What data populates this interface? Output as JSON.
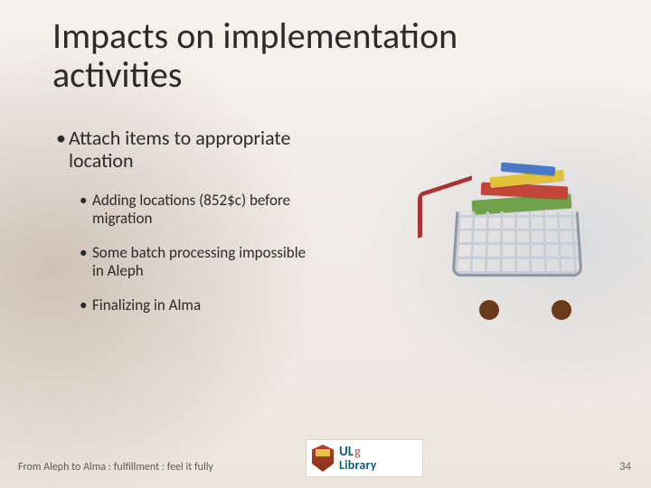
{
  "title": "Impacts on implementation activities",
  "main_bullet": "Attach items to appropriate location",
  "sub_bullets": [
    "Adding locations (852$c) before migration",
    "Some batch processing impossible in Aleph",
    "Finalizing in Alma"
  ],
  "footer_text": "From Aleph to Alma : fulfillment : feel it fully",
  "page_number": "34",
  "logo": {
    "line1_a": "UL",
    "line1_b": "g",
    "line2": "Library"
  },
  "colors": {
    "title": "#2b2b2b",
    "body": "#2b2b2b",
    "footer": "#5a5a5a",
    "page_num": "#6a6a6a",
    "logo_primary": "#14607a",
    "logo_accent": "#c04a2a",
    "background": "#f4f0ec"
  },
  "fonts": {
    "title_size_pt": 30,
    "l1_size_pt": 17,
    "l2_size_pt": 13,
    "footer_size_pt": 9
  },
  "illustration": {
    "type": "infographic",
    "description": "shopping-cart-with-stacked-books",
    "book_colors": [
      "#6fa24a",
      "#c4453a",
      "#e2c23a",
      "#4a78c8"
    ],
    "cart_metal": "#8f97a3",
    "cart_handle": "#a33333",
    "wheel_color": "#6b3a1a"
  }
}
